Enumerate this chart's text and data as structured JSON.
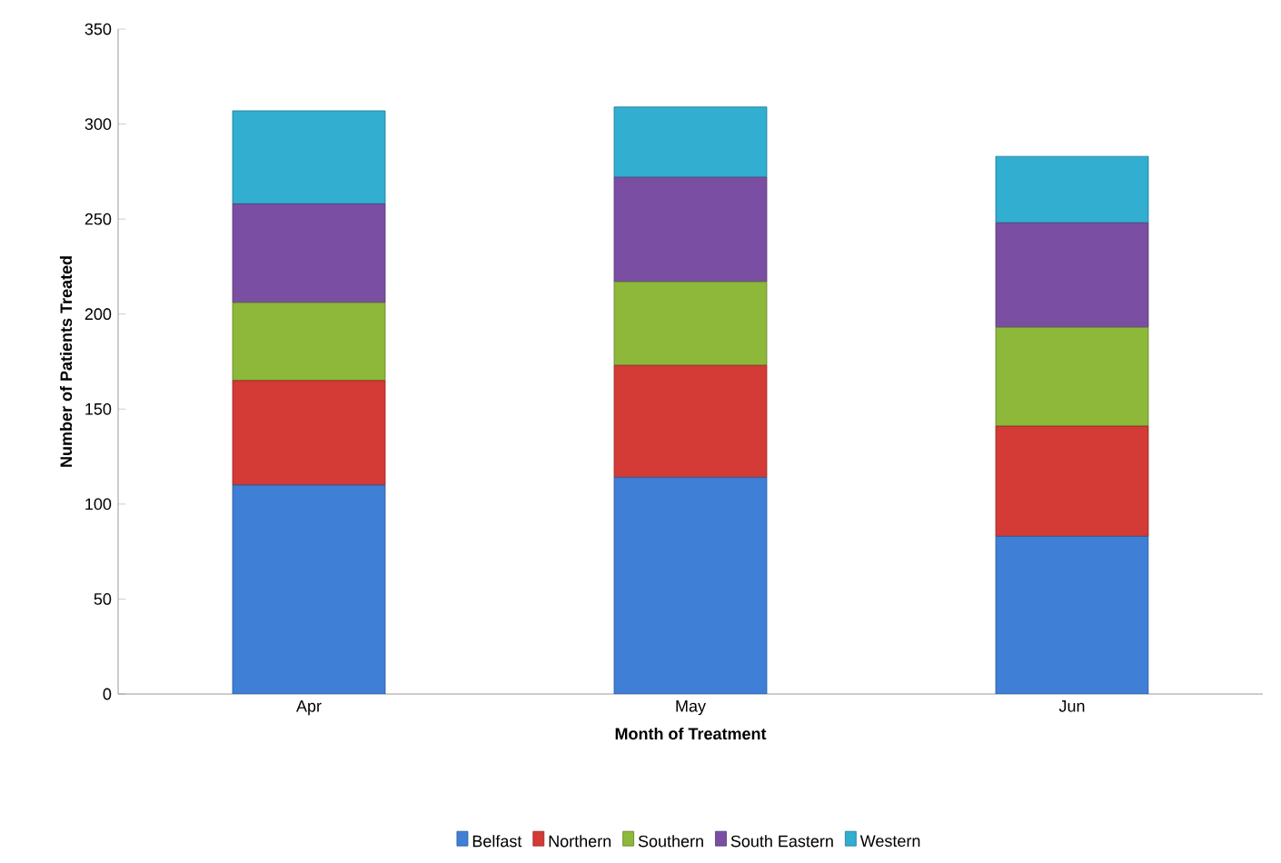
{
  "chart_data": {
    "type": "bar",
    "stacked": true,
    "xlabel": "Month of Treatment",
    "ylabel": "Number of Patients Treated",
    "categories": [
      "Apr",
      "May",
      "Jun"
    ],
    "series": [
      {
        "name": "Belfast",
        "color": "#3f7fd6",
        "values": [
          110,
          114,
          83
        ]
      },
      {
        "name": "Northern",
        "color": "#d43a36",
        "values": [
          55,
          59,
          58
        ]
      },
      {
        "name": "Southern",
        "color": "#8db83a",
        "values": [
          41,
          44,
          52
        ]
      },
      {
        "name": "South Eastern",
        "color": "#7a4fa3",
        "values": [
          52,
          55,
          55
        ]
      },
      {
        "name": "Western",
        "color": "#31aed0",
        "values": [
          49,
          37,
          35
        ]
      }
    ],
    "ylim": [
      0,
      350
    ],
    "yticks": [
      0,
      50,
      100,
      150,
      200,
      250,
      300,
      350
    ],
    "legend": "bottom",
    "grid": false
  }
}
